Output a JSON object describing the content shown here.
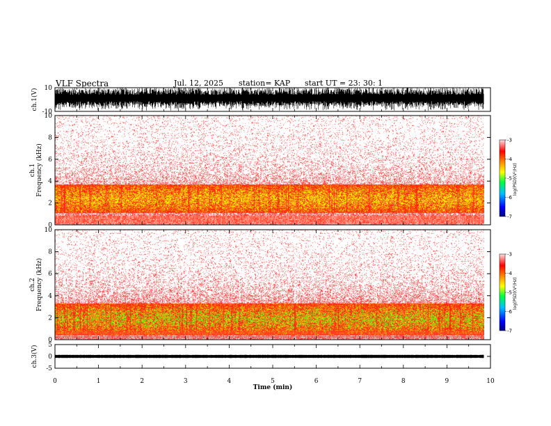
{
  "header": {
    "title": "VLF Spectra",
    "date": "Jul. 12, 2025",
    "station": "station= KAP",
    "start": "start UT =  23: 30: 1"
  },
  "chart_data": {
    "type": "heatmap",
    "xlabel": "Time (min)",
    "xlim": [
      0,
      10
    ],
    "x_ticks": [
      "0",
      "1",
      "2",
      "3",
      "4",
      "5",
      "6",
      "7",
      "8",
      "9",
      "10"
    ],
    "panels": [
      {
        "id": "ch1v",
        "type": "waveform",
        "ylabel": "ch.1(V)",
        "ylim": [
          -10,
          10
        ],
        "y_ticks": [
          "10",
          "-10"
        ],
        "amplitude": 10
      },
      {
        "id": "ch1spec",
        "type": "spectrogram",
        "ylabel": "ch.1\nFrequency (kHz)",
        "ylim": [
          0,
          10
        ],
        "y_ticks": [
          "0",
          "2",
          "4",
          "6",
          "8",
          "10"
        ],
        "band_center_khz": 2.4,
        "band_halfwidth_khz": 1.3,
        "colorbar_label": "log(PSD)(V²/Hz)",
        "colorbar_range": [
          -7,
          -3
        ],
        "colorbar_ticks": [
          "-3",
          "-4",
          "-5",
          "-6",
          "-7"
        ]
      },
      {
        "id": "ch2spec",
        "type": "spectrogram",
        "ylabel": "ch.2\nFrequency (kHz)",
        "ylim": [
          0,
          10
        ],
        "y_ticks": [
          "0",
          "2",
          "4",
          "6",
          "8",
          "10"
        ],
        "band_center_khz": 1.9,
        "band_halfwidth_khz": 1.4,
        "colorbar_label": "log(PSD)(V²/Hz)",
        "colorbar_range": [
          -7,
          -3
        ],
        "colorbar_ticks": [
          "-3",
          "-4",
          "-5",
          "-6",
          "-7"
        ]
      },
      {
        "id": "ch3v",
        "type": "waveform",
        "ylabel": "ch.3(V)",
        "ylim": [
          -5,
          5
        ],
        "y_ticks": [
          "5",
          "0",
          "-5"
        ],
        "amplitude": 0.7
      }
    ],
    "data_end_min": 9.85,
    "colors": {
      "high": "#ffff00",
      "mid": "#00ff00",
      "low": "#ff0000",
      "bg": "#ffffff"
    }
  }
}
